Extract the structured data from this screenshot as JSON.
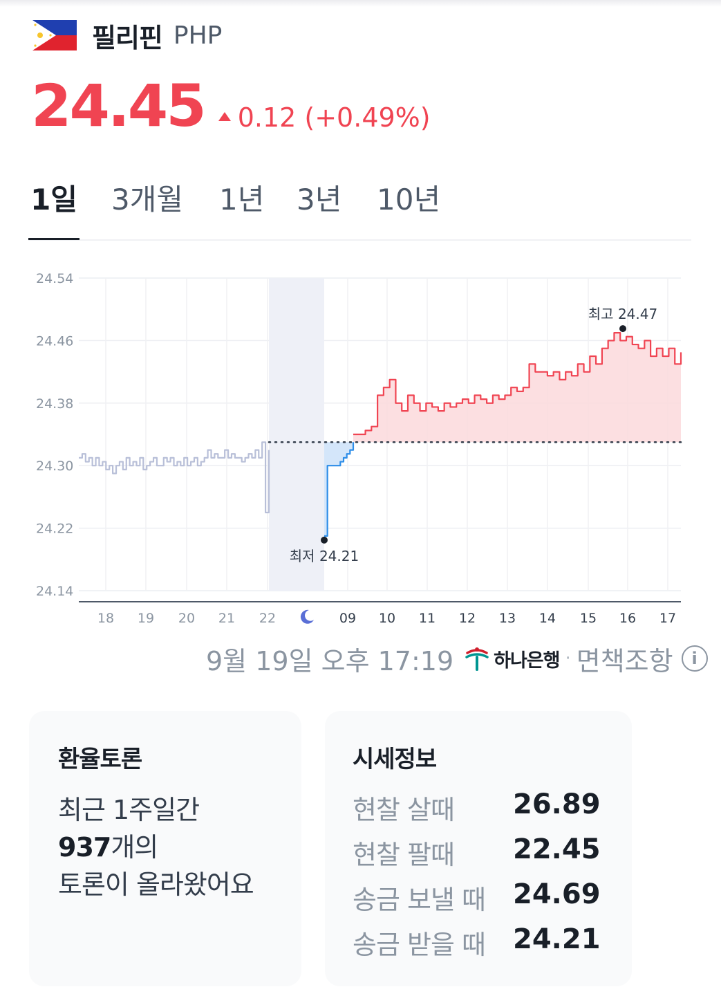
{
  "header": {
    "country": "필리핀",
    "code": "PHP",
    "flag_icon": "philippines-flag-icon"
  },
  "price": {
    "value": "24.45",
    "change": "0.12 (+0.49%)",
    "direction": "up",
    "color": "#f04452"
  },
  "tabs": [
    {
      "label": "1일",
      "active": true
    },
    {
      "label": "3개월",
      "active": false
    },
    {
      "label": "1년",
      "active": false
    },
    {
      "label": "3년",
      "active": false
    },
    {
      "label": "10년",
      "active": false
    }
  ],
  "chart_data": {
    "type": "line",
    "y_ticks": [
      "24.54",
      "24.46",
      "24.38",
      "24.30",
      "24.22",
      "24.14"
    ],
    "ylim": [
      24.14,
      24.54
    ],
    "x_ticks": [
      "18",
      "19",
      "20",
      "21",
      "22",
      "moon-icon",
      "09",
      "10",
      "11",
      "12",
      "13",
      "14",
      "15",
      "16",
      "17"
    ],
    "reference_value": 24.33,
    "high_label": "최고 24.47",
    "low_label": "최저 24.21",
    "high": 24.47,
    "low": 24.21,
    "night_band": "22–09",
    "series": [
      {
        "segment": "previous_day",
        "color": "#b8bfd8",
        "values": [
          24.31,
          24.315,
          24.305,
          24.31,
          24.3,
          24.31,
          24.3,
          24.305,
          24.295,
          24.3,
          24.29,
          24.3,
          24.305,
          24.295,
          24.31,
          24.3,
          24.305,
          24.3,
          24.31,
          24.295,
          24.3,
          24.305,
          24.31,
          24.3,
          24.3,
          24.31,
          24.305,
          24.31,
          24.3,
          24.305,
          24.3,
          24.31,
          24.3,
          24.305,
          24.31,
          24.3,
          24.305,
          24.31,
          24.32,
          24.31,
          24.315,
          24.31,
          24.31,
          24.32,
          24.31,
          24.315,
          24.31,
          24.31,
          24.305,
          24.31,
          24.315,
          24.31,
          24.32,
          24.31,
          24.33,
          24.24,
          24.32
        ]
      },
      {
        "segment": "overnight",
        "color": "#2d8de8",
        "values": [
          24.21,
          24.3,
          24.3,
          24.3,
          24.3,
          24.305,
          24.31,
          24.315,
          24.32,
          24.33
        ]
      },
      {
        "segment": "today",
        "color": "#f04452",
        "values": [
          24.34,
          24.34,
          24.345,
          24.35,
          24.39,
          24.4,
          24.41,
          24.38,
          24.37,
          24.39,
          24.38,
          24.37,
          24.38,
          24.375,
          24.37,
          24.38,
          24.375,
          24.38,
          24.385,
          24.38,
          24.39,
          24.385,
          24.38,
          24.39,
          24.385,
          24.39,
          24.4,
          24.395,
          24.4,
          24.43,
          24.42,
          24.42,
          24.415,
          24.42,
          24.41,
          24.42,
          24.415,
          24.43,
          24.42,
          24.44,
          24.43,
          24.45,
          24.46,
          24.47,
          24.46,
          24.465,
          24.455,
          24.45,
          24.46,
          24.44,
          24.45,
          24.44,
          24.45,
          24.43,
          24.445
        ]
      }
    ]
  },
  "timestamp": {
    "text": "9월 19일 오후 17:19",
    "bank_icon": "hana-bank-logo-icon",
    "bank_name": "하나은행",
    "separator": "·",
    "disclaimer": "면책조항",
    "info_icon": "info-icon"
  },
  "forum": {
    "title": "환율토론",
    "line1": "최근 1주일간",
    "count": "937",
    "count_suffix": "개의",
    "line3": "토론이 올라왔어요"
  },
  "rates": {
    "title": "시세정보",
    "rows": [
      {
        "label": "현찰 살때",
        "value": "26.89"
      },
      {
        "label": "현찰 팔때",
        "value": "22.45"
      },
      {
        "label": "송금 보낼 때",
        "value": "24.69"
      },
      {
        "label": "송금 받을 때",
        "value": "24.21"
      }
    ]
  }
}
